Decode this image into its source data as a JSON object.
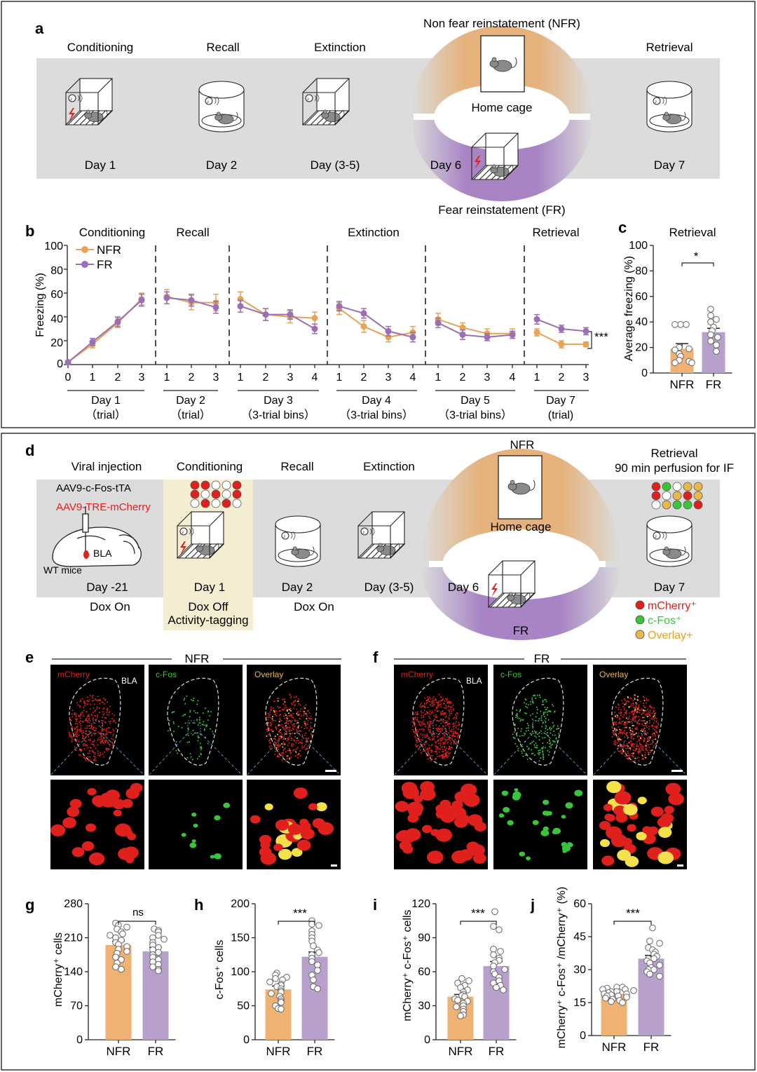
{
  "panel_top": {
    "letter_a": "a",
    "stages": [
      "Conditioning",
      "Recall",
      "Extinction",
      "Retrieval"
    ],
    "days": [
      "Day 1",
      "Day 2",
      "Day (3-5)",
      "Day 6",
      "Day 7"
    ],
    "nfr_title": "Non fear reinstatement (NFR)",
    "home_cage": "Home cage",
    "fr_title": "Fear reinstatement (FR)"
  },
  "panel_b": {
    "letter": "b",
    "section_titles": [
      "Conditioning",
      "Recall",
      "Extinction",
      "Retrieval"
    ],
    "legend": [
      "NFR",
      "FR"
    ],
    "group_labels": [
      {
        "line1": "Day 1",
        "line2": "（trial）"
      },
      {
        "line1": "Day 2",
        "line2": "（trial）"
      },
      {
        "line1": "Day 3",
        "line2": "（3-trial bins）"
      },
      {
        "line1": "Day 4",
        "line2": "（3-trial bins）"
      },
      {
        "line1": "Day 5",
        "line2": "（3-trial bins）"
      },
      {
        "line1": "Day 7",
        "line2": "(trial)"
      }
    ],
    "significance": "***"
  },
  "panel_c": {
    "letter": "c",
    "significance": "*"
  },
  "panel_d": {
    "letter": "d",
    "stages": [
      "Viral injection",
      "Conditioning",
      "Recall",
      "Extinction"
    ],
    "retrieval_line1": "Retrieval",
    "retrieval_line2": "90 min perfusion for IF",
    "virus1": "AAV9-c-Fos-tTA",
    "virus2": "AAV9-TRE-mCherry",
    "bla": "BLA",
    "wt": "WT mice",
    "days": [
      "Day -21",
      "Day 1",
      "Day 2",
      "Day (3-5)",
      "Day 6",
      "Day 7"
    ],
    "dox": [
      "Dox On",
      "Dox Off",
      "Activity-tagging",
      "Dox On"
    ],
    "nfr": "NFR",
    "fr": "FR",
    "home_cage": "Home cage",
    "legend": [
      "mCherry⁺",
      "c-Fos⁺",
      "Overlay+"
    ]
  },
  "panel_ef": {
    "letter_e": "e",
    "letter_f": "f",
    "title_e": "NFR",
    "title_f": "FR",
    "channels": [
      "mCherry",
      "c-Fos",
      "Overlay"
    ],
    "bla": "BLA"
  },
  "panel_ghij": {
    "letters": [
      "g",
      "h",
      "i",
      "j"
    ],
    "sig": [
      "ns",
      "***",
      "***",
      "***"
    ]
  },
  "colors": {
    "nfr": "#E8A355",
    "fr": "#9B6FB5",
    "nfr_bar": "#EFB273",
    "fr_bar": "#B8A0CC",
    "band": "#DCDCDC",
    "highlight": "#F5EDD1",
    "red": "#E0201C",
    "green": "#38C538",
    "yellow": "#E9B84A"
  },
  "chart_data": [
    {
      "id": "b",
      "type": "line",
      "ylabel": "Freezing (%)",
      "ylim": [
        0,
        100
      ],
      "yticks": [
        "0",
        "20",
        "40",
        "60",
        "80",
        "100"
      ],
      "groups": [
        {
          "ticks": [
            "0",
            "1",
            "2",
            "3"
          ],
          "series": [
            {
              "name": "NFR",
              "values": [
                2,
                17,
                35,
                55
              ],
              "err": [
                1,
                3,
                4,
                5
              ]
            },
            {
              "name": "FR",
              "values": [
                2,
                19,
                36,
                54
              ],
              "err": [
                1,
                3,
                4,
                5
              ]
            }
          ]
        },
        {
          "ticks": [
            "1",
            "2",
            "3"
          ],
          "series": [
            {
              "name": "NFR",
              "values": [
                57,
                52,
                52
              ],
              "err": [
                6,
                6,
                7
              ]
            },
            {
              "name": "FR",
              "values": [
                56,
                54,
                48
              ],
              "err": [
                5,
                5,
                5
              ]
            }
          ]
        },
        {
          "ticks": [
            "1",
            "2",
            "3",
            "4"
          ],
          "series": [
            {
              "name": "NFR",
              "values": [
                55,
                42,
                40,
                39
              ],
              "err": [
                6,
                5,
                5,
                5
              ]
            },
            {
              "name": "FR",
              "values": [
                49,
                42,
                42,
                30
              ],
              "err": [
                5,
                5,
                4,
                4
              ]
            }
          ]
        },
        {
          "ticks": [
            "1",
            "2",
            "3",
            "4"
          ],
          "series": [
            {
              "name": "NFR",
              "values": [
                47,
                32,
                23,
                27
              ],
              "err": [
                5,
                5,
                4,
                5
              ]
            },
            {
              "name": "FR",
              "values": [
                49,
                43,
                28,
                23
              ],
              "err": [
                4,
                4,
                4,
                4
              ]
            }
          ]
        },
        {
          "ticks": [
            "1",
            "2",
            "3",
            "4"
          ],
          "series": [
            {
              "name": "NFR",
              "values": [
                38,
                31,
                26,
                26
              ],
              "err": [
                5,
                4,
                4,
                4
              ]
            },
            {
              "name": "FR",
              "values": [
                35,
                25,
                23,
                25
              ],
              "err": [
                4,
                4,
                3,
                3
              ]
            }
          ]
        },
        {
          "ticks": [
            "1",
            "2",
            "3"
          ],
          "series": [
            {
              "name": "NFR",
              "values": [
                27,
                17,
                17
              ],
              "err": [
                3,
                3,
                2
              ]
            },
            {
              "name": "FR",
              "values": [
                38,
                30,
                28
              ],
              "err": [
                4,
                3,
                3
              ]
            }
          ]
        }
      ]
    },
    {
      "id": "c",
      "type": "bar",
      "title": "Retrieval",
      "ylabel": "Average freezing (%)",
      "ylim": [
        0,
        100
      ],
      "yticks": [
        "0",
        "20",
        "40",
        "60",
        "80",
        "100"
      ],
      "categories": [
        "NFR",
        "FR"
      ],
      "values": [
        19,
        32
      ],
      "err": [
        4,
        3
      ],
      "points": [
        [
          38,
          38,
          38,
          20,
          19,
          18,
          15,
          13,
          10,
          9,
          8,
          8
        ],
        [
          50,
          45,
          42,
          40,
          36,
          33,
          30,
          28,
          25,
          22,
          17
        ]
      ]
    },
    {
      "id": "g",
      "type": "bar",
      "ylabel": "mCherry⁺ cells",
      "ylim": [
        0,
        280
      ],
      "yticks": [
        "0",
        "70",
        "140",
        "210",
        "280"
      ],
      "categories": [
        "NFR",
        "FR"
      ],
      "values": [
        195,
        182
      ],
      "err": [
        8,
        8
      ],
      "points": [
        [
          240,
          236,
          232,
          228,
          222,
          218,
          215,
          210,
          205,
          200,
          196,
          192,
          186,
          182,
          178,
          170,
          165,
          158,
          150,
          145
        ],
        [
          228,
          225,
          222,
          215,
          210,
          207,
          200,
          195,
          190,
          185,
          180,
          175,
          170,
          165,
          160,
          155,
          150,
          145,
          142
        ]
      ]
    },
    {
      "id": "h",
      "type": "bar",
      "ylabel": "c-Fos⁺ cells",
      "ylim": [
        0,
        200
      ],
      "yticks": [
        "0",
        "50",
        "100",
        "150",
        "200"
      ],
      "categories": [
        "NFR",
        "FR"
      ],
      "values": [
        74,
        122
      ],
      "err": [
        5,
        7
      ],
      "points": [
        [
          98,
          95,
          92,
          90,
          88,
          85,
          82,
          80,
          78,
          75,
          72,
          70,
          68,
          64,
          60,
          57,
          55,
          50,
          46,
          45
        ],
        [
          175,
          170,
          168,
          160,
          155,
          150,
          145,
          138,
          132,
          128,
          125,
          120,
          115,
          110,
          102,
          95,
          88,
          78,
          75
        ]
      ]
    },
    {
      "id": "i",
      "type": "bar",
      "ylabel": "mCherry⁺ c-Fos⁺ cells",
      "ylim": [
        0,
        120
      ],
      "yticks": [
        "0",
        "30",
        "60",
        "90",
        "120"
      ],
      "categories": [
        "NFR",
        "FR"
      ],
      "values": [
        38,
        65
      ],
      "err": [
        2,
        4
      ],
      "points": [
        [
          54,
          52,
          50,
          48,
          46,
          44,
          42,
          40,
          39,
          38,
          36,
          35,
          34,
          32,
          30,
          29,
          27,
          25,
          22,
          21
        ],
        [
          113,
          100,
          97,
          80,
          78,
          75,
          72,
          70,
          68,
          65,
          62,
          60,
          58,
          55,
          52,
          50,
          48,
          46,
          44
        ]
      ]
    },
    {
      "id": "j",
      "type": "bar",
      "ylabel": "mCherry⁺ c-Fos⁺ /mCherry⁺ (%)",
      "ylim": [
        0,
        60
      ],
      "yticks": [
        "0",
        "15",
        "30",
        "45",
        "60"
      ],
      "categories": [
        "NFR",
        "FR"
      ],
      "values": [
        19,
        35
      ],
      "err": [
        0.8,
        1.5
      ],
      "points": [
        [
          22,
          22,
          21.5,
          21,
          21,
          20.5,
          20,
          20,
          19.5,
          19,
          19,
          18.5,
          18,
          18,
          17.5,
          17,
          16.5,
          16,
          15.5,
          15
        ],
        [
          49,
          43,
          42,
          40,
          39,
          38,
          37,
          36,
          35,
          35,
          34,
          33,
          32,
          31,
          30,
          30,
          29,
          28,
          27
        ]
      ]
    }
  ]
}
